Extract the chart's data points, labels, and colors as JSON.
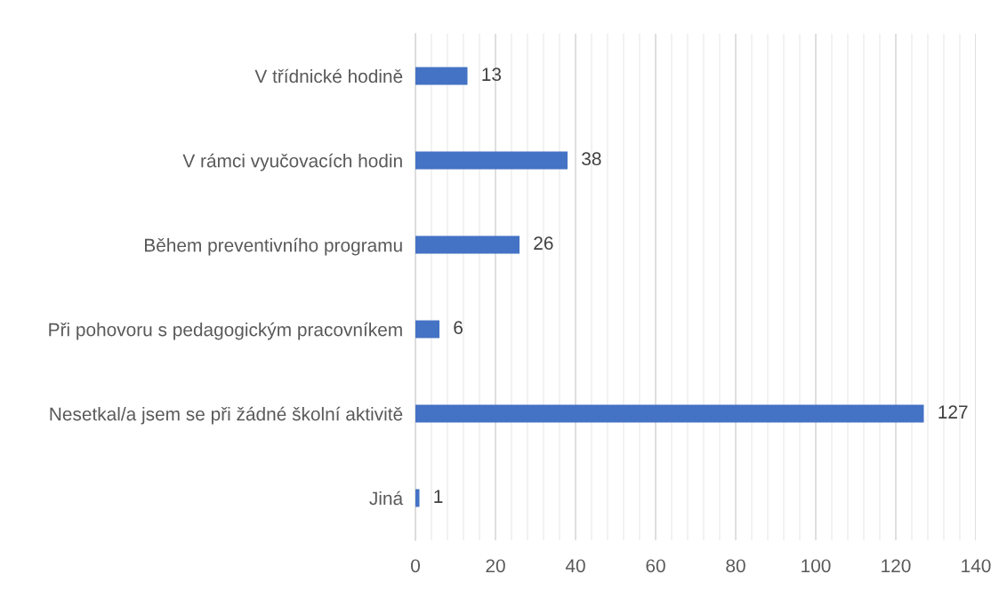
{
  "chart_data": {
    "type": "bar",
    "orientation": "horizontal",
    "categories": [
      "V třídnické hodině",
      "V rámci vyučovacích hodin",
      "Během preventivního programu",
      "Při pohovoru s pedagogickým pracovníkem",
      "Nesetkal/a jsem se při žádné školní aktivitě",
      "Jiná"
    ],
    "values": [
      13,
      38,
      26,
      6,
      127,
      1
    ],
    "color": "#4472c4",
    "xlim": [
      0,
      140
    ],
    "xticks": [
      0,
      {
        "value": 4,
        "label": null
      },
      {
        "value": 8,
        "label": null
      },
      {
        "value": 12,
        "label": null
      },
      {
        "value": 16,
        "label": null
      },
      20,
      {
        "value": 24,
        "label": null
      },
      {
        "value": 28,
        "label": null
      },
      {
        "value": 32,
        "label": null
      },
      {
        "value": 36,
        "label": null
      },
      40,
      {
        "value": 44,
        "label": null
      },
      {
        "value": 48,
        "label": null
      },
      {
        "value": 52,
        "label": null
      },
      {
        "value": 56,
        "label": null
      },
      60,
      {
        "value": 64,
        "label": null
      },
      {
        "value": 68,
        "label": null
      },
      {
        "value": 72,
        "label": null
      },
      {
        "value": 76,
        "label": null
      },
      80,
      {
        "value": 84,
        "label": null
      },
      {
        "value": 88,
        "label": null
      },
      {
        "value": 92,
        "label": null
      },
      {
        "value": 96,
        "label": null
      },
      100,
      {
        "value": 104,
        "label": null
      },
      {
        "value": 108,
        "label": null
      },
      {
        "value": 112,
        "label": null
      },
      {
        "value": 116,
        "label": null
      },
      120,
      {
        "value": 124,
        "label": null
      },
      {
        "value": 128,
        "label": null
      },
      {
        "value": 132,
        "label": null
      },
      {
        "value": 136,
        "label": null
      },
      140
    ],
    "grid": "x",
    "data_labels": true
  }
}
